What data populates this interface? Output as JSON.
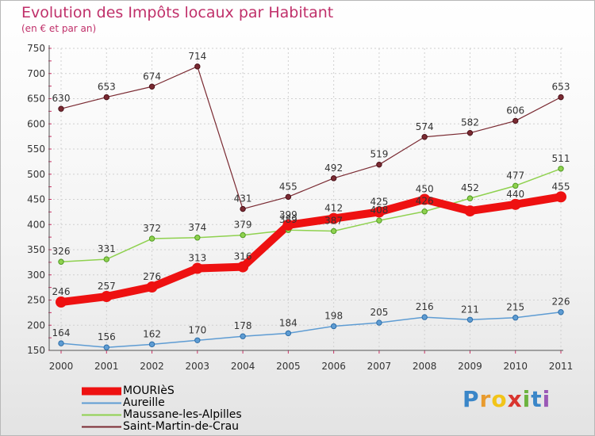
{
  "header": {
    "title": "Evolution des Impôts locaux par Habitant",
    "subtitle": "(en € et par an)"
  },
  "brand": {
    "letters": [
      "P",
      "r",
      "o",
      "x",
      "i",
      "t",
      "i"
    ],
    "colors": [
      "#3a86c8",
      "#e89b2e",
      "#f2c418",
      "#d9352f",
      "#6cb33f",
      "#3a86c8",
      "#9b59b6"
    ]
  },
  "chart_data": {
    "type": "line",
    "title": "Evolution des Impôts locaux par Habitant",
    "subtitle": "(en € et par an)",
    "xlabel": "",
    "ylabel": "",
    "ylim": [
      150,
      750
    ],
    "yticks": [
      150,
      200,
      250,
      300,
      350,
      400,
      450,
      500,
      550,
      600,
      650,
      700,
      750
    ],
    "grid": true,
    "legend_position": "bottom-left",
    "categories": [
      "2000",
      "2001",
      "2002",
      "2003",
      "2004",
      "2005",
      "2006",
      "2007",
      "2008",
      "2009",
      "2010",
      "2011"
    ],
    "series": [
      {
        "name": "MOURIèS",
        "color": "#ee1111",
        "values": [
          246,
          257,
          276,
          313,
          316,
          399,
          412,
          425,
          450,
          427,
          440,
          455
        ],
        "labels": [
          "246",
          "257",
          "276",
          "313",
          "316",
          "399",
          "412",
          "425",
          "450",
          "",
          "440",
          "455"
        ]
      },
      {
        "name": "Aureille",
        "color": "#5e9cd3",
        "values": [
          164,
          156,
          162,
          170,
          178,
          184,
          198,
          205,
          216,
          211,
          215,
          226
        ],
        "labels": [
          "164",
          "156",
          "162",
          "170",
          "178",
          "184",
          "198",
          "205",
          "216",
          "211",
          "215",
          "226"
        ]
      },
      {
        "name": "Maussane-les-Alpilles",
        "color": "#8fd14f",
        "values": [
          326,
          331,
          372,
          374,
          379,
          389,
          387,
          408,
          426,
          452,
          477,
          511
        ],
        "labels": [
          "326",
          "331",
          "372",
          "374",
          "379",
          "389",
          "387",
          "408",
          "426",
          "452",
          "477",
          "511"
        ]
      },
      {
        "name": "Saint-Martin-de-Crau",
        "color": "#7a2a32",
        "values": [
          630,
          653,
          674,
          714,
          431,
          455,
          492,
          519,
          574,
          582,
          606,
          653
        ],
        "labels": [
          "630",
          "653",
          "674",
          "714",
          "431",
          "455",
          "492",
          "519",
          "574",
          "582",
          "606",
          "653"
        ]
      }
    ]
  }
}
